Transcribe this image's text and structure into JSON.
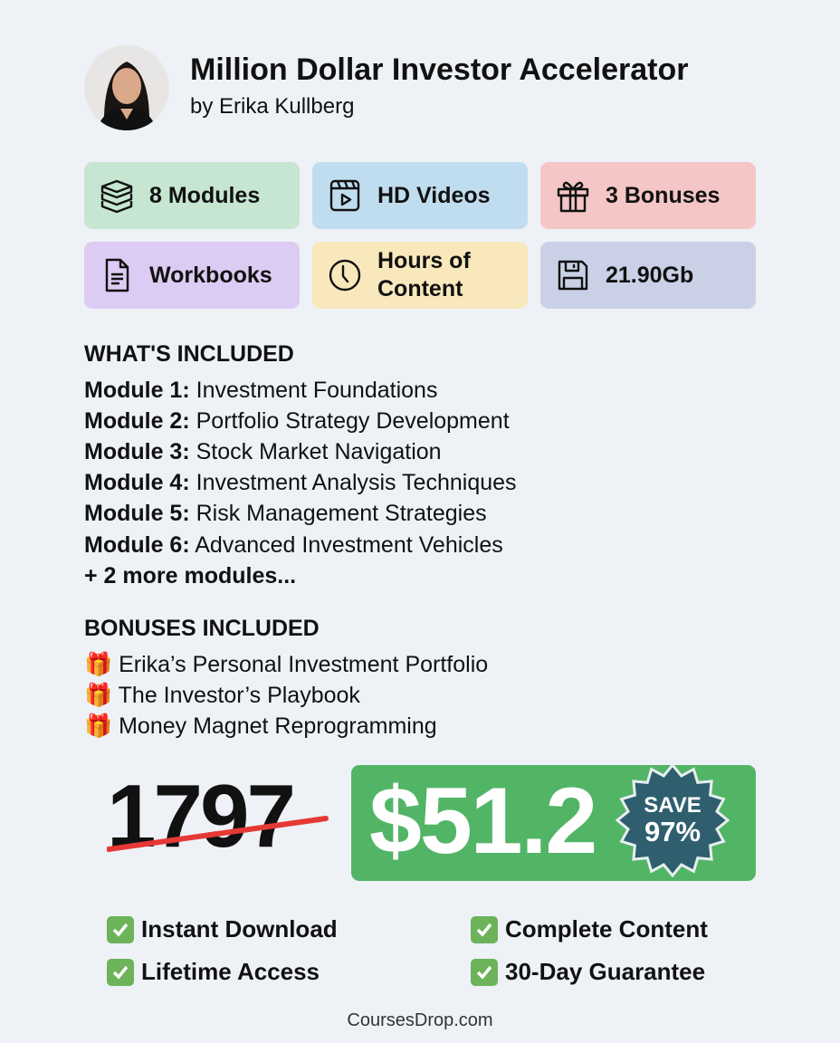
{
  "header": {
    "title": "Million Dollar Investor Accelerator",
    "subtitle": "by Erika Kullberg"
  },
  "features": [
    {
      "label": "8 Modules",
      "icon": "books-icon",
      "color": "#c6e6d2"
    },
    {
      "label": "HD Videos",
      "icon": "video-icon",
      "color": "#c0ddf0"
    },
    {
      "label": "3 Bonuses",
      "icon": "gift-icon",
      "color": "#f4c6c6"
    },
    {
      "label": "Workbooks",
      "icon": "document-icon",
      "color": "#dccbf2"
    },
    {
      "label": "Hours of Content",
      "icon": "clock-icon",
      "color": "#f8e8bb"
    },
    {
      "label": "21.90Gb",
      "icon": "floppy-disk-icon",
      "color": "#cad1e6"
    }
  ],
  "included": {
    "heading": "WHAT'S INCLUDED",
    "modules": [
      {
        "prefix": "Module 1:",
        "name": "Investment Foundations"
      },
      {
        "prefix": "Module 2:",
        "name": "Portfolio Strategy Development"
      },
      {
        "prefix": "Module 3:",
        "name": "Stock Market Navigation"
      },
      {
        "prefix": "Module 4:",
        "name": "Investment Analysis Techniques"
      },
      {
        "prefix": "Module 5:",
        "name": "Risk Management Strategies"
      },
      {
        "prefix": "Module 6:",
        "name": "Advanced Investment Vehicles"
      }
    ],
    "more": "+ 2 more modules..."
  },
  "bonuses": {
    "heading": "BONUSES INCLUDED",
    "items": [
      "Erika’s Personal Investment Portfolio",
      "The Investor’s Playbook",
      "Money Magnet Reprogramming"
    ]
  },
  "pricing": {
    "old_price": "1797",
    "new_price": "$51.2",
    "badge_top": "SAVE",
    "badge_bottom": "97%",
    "accent": "#52b566",
    "badge_color": "#2f5f6f",
    "strike_color": "#e53935"
  },
  "guarantees": [
    "Instant Download",
    "Complete Content",
    "Lifetime Access",
    "30-Day Guarantee"
  ],
  "footer": "CoursesDrop.com"
}
